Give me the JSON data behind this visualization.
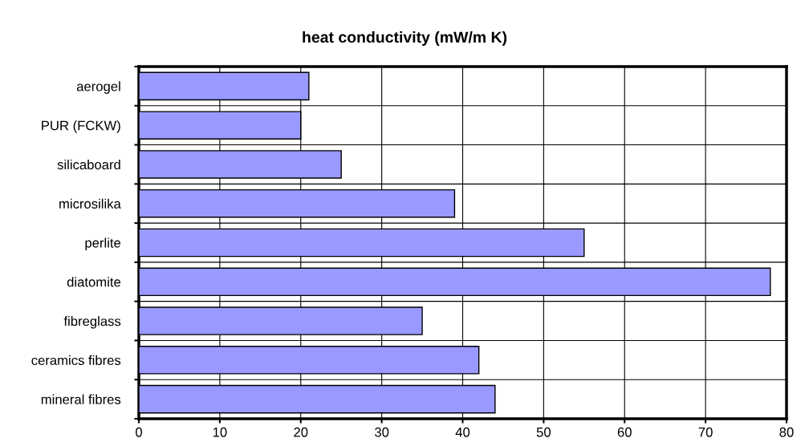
{
  "chart_data": {
    "type": "bar",
    "orientation": "horizontal",
    "title": "heat conductivity (mW/m K)",
    "categories": [
      "aerogel",
      "PUR (FCKW)",
      "silicaboard",
      "microsilika",
      "perlite",
      "diatomite",
      "fibreglass",
      "ceramics fibres",
      "mineral fibres"
    ],
    "values": [
      21,
      20,
      25,
      39,
      55,
      78,
      35,
      42,
      44
    ],
    "color": "#9999ff",
    "xlim": [
      0,
      80
    ],
    "xticks": [
      0,
      10,
      20,
      30,
      40,
      50,
      60,
      70,
      80
    ],
    "grid": true
  }
}
